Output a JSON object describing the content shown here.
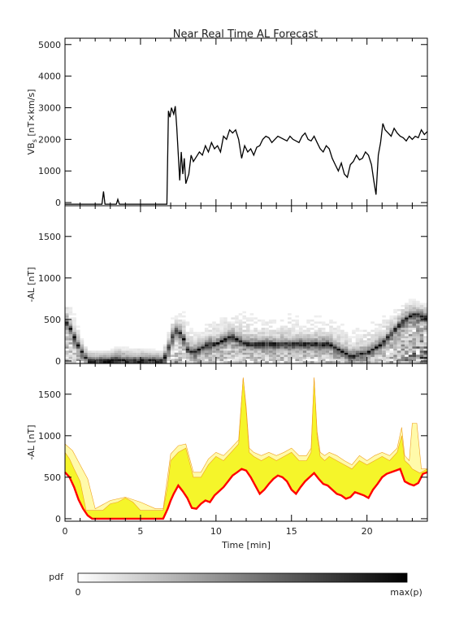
{
  "figure": {
    "title": "Near Real Time AL Forecast",
    "colorbar": {
      "label": "pdf",
      "min_label": "0",
      "max_label": "max(p)"
    }
  },
  "chart_data": [
    {
      "type": "line",
      "ylabel": "VBs [nT×km/s]",
      "ylabel_parts": [
        "VB",
        "s",
        " [nT×km/s]"
      ],
      "xlim": [
        0,
        24
      ],
      "ylim": [
        -100,
        5200
      ],
      "yticks": [
        0,
        1000,
        2000,
        3000,
        4000,
        5000
      ],
      "series": [
        {
          "x": [
            0,
            1,
            2,
            2.45,
            2.55,
            2.65,
            2.75,
            3.4,
            3.5,
            3.6,
            5,
            6.5,
            6.75,
            6.85,
            6.95,
            7.05,
            7.2,
            7.3,
            7.4,
            7.6,
            7.7,
            7.8,
            7.9,
            8.0,
            8.2,
            8.35,
            8.5,
            8.7,
            8.9,
            9.1,
            9.3,
            9.5,
            9.7,
            9.9,
            10.1,
            10.3,
            10.5,
            10.7,
            10.9,
            11.1,
            11.3,
            11.5,
            11.7,
            11.9,
            12.1,
            12.3,
            12.5,
            12.7,
            12.9,
            13.1,
            13.3,
            13.5,
            13.7,
            13.9,
            14.1,
            14.3,
            14.5,
            14.7,
            14.9,
            15.1,
            15.3,
            15.5,
            15.7,
            15.9,
            16.1,
            16.3,
            16.5,
            16.7,
            16.9,
            17.1,
            17.3,
            17.5,
            17.7,
            17.9,
            18.1,
            18.3,
            18.5,
            18.7,
            18.9,
            19.1,
            19.3,
            19.5,
            19.7,
            19.9,
            20.1,
            20.3,
            20.45,
            20.6,
            20.75,
            20.9,
            21.05,
            21.2,
            21.4,
            21.6,
            21.8,
            22.0,
            22.2,
            22.4,
            22.6,
            22.8,
            23.0,
            23.2,
            23.4,
            23.6,
            23.8,
            24
          ],
          "y": [
            -50,
            -50,
            -50,
            -50,
            350,
            -50,
            -50,
            -50,
            100,
            -50,
            -50,
            -50,
            -50,
            2900,
            2700,
            3000,
            2800,
            3050,
            2400,
            700,
            1600,
            900,
            1400,
            600,
            900,
            1500,
            1300,
            1450,
            1600,
            1500,
            1800,
            1600,
            1900,
            1700,
            1800,
            1600,
            2100,
            2000,
            2300,
            2200,
            2300,
            2000,
            1400,
            1800,
            1600,
            1700,
            1500,
            1750,
            1800,
            2000,
            2100,
            2050,
            1900,
            2000,
            2100,
            2050,
            2000,
            1950,
            2100,
            2000,
            1950,
            1900,
            2100,
            2200,
            2000,
            1950,
            2100,
            1900,
            1700,
            1600,
            1800,
            1700,
            1400,
            1200,
            1000,
            1250,
            900,
            800,
            1200,
            1300,
            1500,
            1350,
            1400,
            1600,
            1500,
            1200,
            700,
            250,
            1500,
            1900,
            2500,
            2300,
            2200,
            2100,
            2350,
            2200,
            2100,
            2050,
            1950,
            2100,
            2000,
            2100,
            2050,
            2300,
            2150,
            2250
          ]
        }
      ]
    },
    {
      "type": "heatmap",
      "ylabel": "-AL [nT]",
      "xlim": [
        0,
        24
      ],
      "ylim": [
        -30,
        1870
      ],
      "yticks": [
        0,
        500,
        1000,
        1500
      ],
      "series": [
        {
          "name": "median",
          "x": [
            0,
            0.3,
            0.6,
            1.0,
            1.4,
            1.6,
            2.0,
            3.0,
            3.5,
            4.0,
            5.0,
            6.0,
            6.5,
            6.8,
            7.0,
            7.4,
            7.8,
            8.1,
            8.5,
            9.0,
            9.5,
            10.0,
            10.5,
            11.0,
            11.5,
            12.0,
            12.5,
            13.0,
            13.5,
            14.0,
            14.5,
            15.0,
            15.5,
            16.0,
            16.5,
            17.0,
            17.5,
            18.0,
            18.5,
            19.0,
            19.5,
            20.0,
            20.5,
            21.0,
            21.5,
            22.0,
            22.5,
            23.0,
            23.5,
            24.0
          ],
          "y": [
            480,
            420,
            300,
            150,
            40,
            0,
            0,
            0,
            30,
            0,
            0,
            0,
            0,
            120,
            250,
            380,
            300,
            150,
            100,
            150,
            200,
            200,
            250,
            300,
            250,
            200,
            200,
            200,
            200,
            200,
            200,
            200,
            200,
            200,
            200,
            200,
            200,
            150,
            100,
            50,
            80,
            100,
            150,
            200,
            300,
            400,
            500,
            550,
            550,
            520
          ]
        },
        {
          "name": "upper_envelope",
          "x": [
            0,
            0.5,
            1.0,
            1.5,
            2.0,
            3.0,
            4.0,
            5.0,
            6.0,
            6.5,
            7.0,
            7.5,
            8.0,
            8.5,
            9.0,
            9.5,
            10.0,
            10.5,
            11.0,
            11.5,
            12.0,
            12.5,
            13.0,
            13.5,
            14.0,
            14.5,
            15.0,
            15.5,
            16.0,
            16.5,
            17.0,
            17.5,
            18.0,
            18.5,
            19.0,
            19.5,
            20.0,
            20.5,
            21.0,
            21.5,
            22.0,
            22.5,
            23.0,
            23.5,
            24.0
          ],
          "y": [
            850,
            750,
            400,
            120,
            120,
            120,
            250,
            180,
            120,
            120,
            600,
            700,
            750,
            450,
            450,
            600,
            700,
            650,
            750,
            700,
            800,
            700,
            650,
            700,
            650,
            700,
            750,
            650,
            650,
            700,
            700,
            650,
            600,
            600,
            550,
            650,
            600,
            650,
            700,
            650,
            750,
            800,
            800,
            750,
            700
          ]
        }
      ]
    },
    {
      "type": "area",
      "ylabel": "-AL [nT]",
      "xlabel": "Time [min]",
      "xlim": [
        0,
        24
      ],
      "ylim": [
        -30,
        1870
      ],
      "xticks": [
        0,
        5,
        10,
        15,
        20
      ],
      "yticks": [
        0,
        500,
        1000,
        1500
      ],
      "colors": {
        "light_band": "#fffaaa",
        "dark_band": "#f5f52a",
        "band_edge": "#f0a020",
        "median": "#ff0000"
      },
      "series": [
        {
          "name": "median",
          "x": [
            0,
            0.3,
            0.6,
            0.9,
            1.2,
            1.5,
            1.8,
            2.5,
            3.0,
            3.5,
            4.0,
            5.0,
            6.0,
            6.5,
            6.8,
            7.0,
            7.2,
            7.5,
            7.8,
            8.1,
            8.4,
            8.7,
            9.0,
            9.3,
            9.6,
            9.9,
            10.2,
            10.5,
            10.8,
            11.1,
            11.4,
            11.7,
            12.0,
            12.3,
            12.6,
            12.9,
            13.2,
            13.5,
            13.8,
            14.1,
            14.4,
            14.7,
            15.0,
            15.3,
            15.6,
            15.9,
            16.2,
            16.5,
            16.8,
            17.1,
            17.4,
            17.7,
            18.0,
            18.3,
            18.6,
            18.9,
            19.2,
            19.5,
            19.8,
            20.1,
            20.4,
            20.7,
            21.0,
            21.3,
            21.6,
            21.9,
            22.2,
            22.5,
            22.8,
            23.1,
            23.4,
            23.7,
            24.0
          ],
          "y": [
            560,
            500,
            380,
            230,
            120,
            40,
            0,
            0,
            0,
            0,
            0,
            0,
            0,
            0,
            120,
            220,
            300,
            400,
            330,
            250,
            130,
            120,
            180,
            220,
            200,
            280,
            330,
            380,
            450,
            520,
            560,
            600,
            580,
            500,
            400,
            300,
            350,
            420,
            480,
            520,
            500,
            450,
            350,
            300,
            380,
            450,
            500,
            550,
            480,
            420,
            400,
            350,
            300,
            280,
            240,
            260,
            320,
            300,
            280,
            250,
            350,
            420,
            500,
            540,
            560,
            580,
            600,
            450,
            420,
            400,
            430,
            540,
            560
          ]
        },
        {
          "name": "upper_dark",
          "x": [
            0,
            0.3,
            0.6,
            1.0,
            1.4,
            1.8,
            2.5,
            3.0,
            3.5,
            4.0,
            4.5,
            5.0,
            6.0,
            6.5,
            6.8,
            7.0,
            7.5,
            8.0,
            8.5,
            9.0,
            9.5,
            10.0,
            10.5,
            11.0,
            11.5,
            11.8,
            12.0,
            12.2,
            12.5,
            13.0,
            13.5,
            14.0,
            14.5,
            15.0,
            15.5,
            16.0,
            16.3,
            16.5,
            16.7,
            16.9,
            17.2,
            17.5,
            18.0,
            18.5,
            19.0,
            19.5,
            20.0,
            20.5,
            21.0,
            21.5,
            22.0,
            22.3,
            22.5,
            22.8,
            23.0,
            23.5,
            24.0
          ],
          "y": [
            800,
            720,
            600,
            450,
            100,
            100,
            100,
            180,
            200,
            250,
            200,
            100,
            100,
            100,
            400,
            700,
            800,
            850,
            500,
            500,
            650,
            750,
            700,
            800,
            900,
            1700,
            1300,
            800,
            750,
            700,
            750,
            700,
            750,
            800,
            700,
            700,
            800,
            1700,
            1000,
            750,
            700,
            750,
            700,
            650,
            600,
            700,
            650,
            700,
            750,
            700,
            800,
            1000,
            700,
            650,
            600,
            550,
            600
          ]
        },
        {
          "name": "upper_light",
          "x": [
            0,
            0.5,
            1.0,
            1.5,
            2.0,
            3.0,
            4.0,
            5.0,
            6.0,
            6.5,
            7.0,
            7.5,
            8.0,
            8.5,
            9.0,
            9.5,
            10.0,
            10.5,
            11.0,
            11.5,
            11.8,
            12.0,
            12.2,
            12.5,
            13.0,
            13.5,
            14.0,
            14.5,
            15.0,
            15.5,
            16.0,
            16.3,
            16.5,
            16.7,
            16.9,
            17.2,
            17.5,
            18.0,
            18.5,
            19.0,
            19.5,
            20.0,
            20.5,
            21.0,
            21.5,
            22.0,
            22.3,
            22.5,
            22.8,
            23.0,
            23.3,
            23.6,
            24.0
          ],
          "y": [
            900,
            820,
            650,
            480,
            120,
            220,
            260,
            200,
            120,
            120,
            780,
            880,
            900,
            560,
            560,
            720,
            800,
            760,
            850,
            950,
            1700,
            1350,
            850,
            800,
            760,
            800,
            760,
            800,
            850,
            760,
            760,
            850,
            1700,
            1050,
            800,
            760,
            800,
            760,
            700,
            650,
            760,
            700,
            760,
            800,
            760,
            850,
            1100,
            760,
            700,
            1150,
            1150,
            600,
            600
          ]
        }
      ]
    }
  ]
}
